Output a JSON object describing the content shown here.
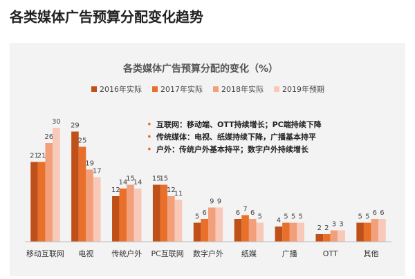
{
  "page_title": "各类媒体广告预算分配变化趋势",
  "chart_data": {
    "type": "bar",
    "title": "各类媒体广告预算分配的变化（%）",
    "categories": [
      "移动互联网",
      "电视",
      "传统户外",
      "PC互联网",
      "数字户外",
      "纸媒",
      "广播",
      "OTT",
      "其他"
    ],
    "series": [
      {
        "name": "2016年实际",
        "color": "#c0501a",
        "values": [
          21,
          29,
          12,
          15,
          5,
          6,
          4,
          2,
          5
        ]
      },
      {
        "name": "2017年实际",
        "color": "#e8702a",
        "values": [
          21,
          25,
          14,
          15,
          6,
          7,
          5,
          2,
          5
        ]
      },
      {
        "name": "2018年实际",
        "color": "#f2a07c",
        "values": [
          26,
          19,
          15,
          12,
          9,
          6,
          5,
          3,
          6
        ]
      },
      {
        "name": "2019年预期",
        "color": "#f8c8b8",
        "values": [
          30,
          17,
          14,
          11,
          9,
          5,
          5,
          3,
          6
        ]
      }
    ],
    "annotations": [
      "互联网：移动端、OTT持续增长；PC端持续下降",
      "传统媒体：电视、纸媒持续下降，广播基本持平",
      "户外：传统户外基本持平；数字户外持续增长"
    ]
  }
}
